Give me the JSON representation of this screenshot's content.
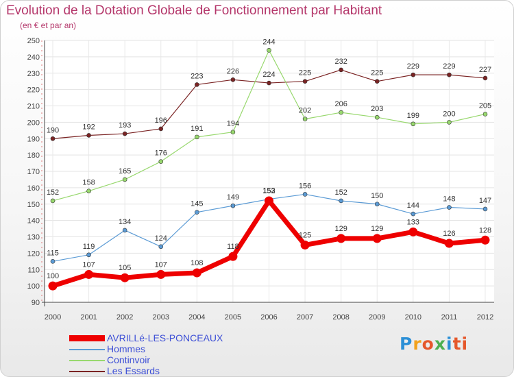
{
  "chart_data": {
    "type": "line",
    "title": "Evolution de la Dotation Globale de Fonctionnement par Habitant",
    "subtitle": "(en € et par an)",
    "categories": [
      "2000",
      "2001",
      "2002",
      "2003",
      "2004",
      "2005",
      "2006",
      "2007",
      "2008",
      "2009",
      "2010",
      "2011",
      "2012"
    ],
    "ylim": [
      90,
      250
    ],
    "yticks": [
      90,
      100,
      110,
      120,
      130,
      140,
      150,
      160,
      170,
      180,
      190,
      200,
      210,
      220,
      230,
      240,
      250
    ],
    "series": [
      {
        "name": "AVRILLé-LES-PONCEAUX",
        "color": "#ee0000",
        "values": [
          100,
          107,
          105,
          107,
          108,
          118,
          152,
          125,
          129,
          129,
          133,
          126,
          128
        ],
        "labels": [
          "100",
          "107",
          "105",
          "107",
          "108",
          "118",
          "152",
          "125",
          "129",
          "129",
          "133",
          "126",
          "128"
        ]
      },
      {
        "name": "Hommes",
        "color": "#5b9bd5",
        "values": [
          115,
          119,
          134,
          124,
          145,
          149,
          153,
          156,
          152,
          150,
          144,
          148,
          147
        ],
        "labels": [
          "115",
          "119",
          "134",
          "124",
          "145",
          "149",
          "153",
          "156",
          "152",
          "150",
          "144",
          "148",
          "147"
        ]
      },
      {
        "name": "Continvoir",
        "color": "#98d86e",
        "values": [
          152,
          158,
          165,
          176,
          191,
          194,
          244,
          202,
          206,
          203,
          199,
          200,
          205
        ],
        "labels": [
          "152",
          "158",
          "165",
          "176",
          "191",
          "194",
          "244",
          "202",
          "206",
          "203",
          "199",
          "200",
          "205"
        ]
      },
      {
        "name": "Les Essards",
        "color": "#7b2424",
        "values": [
          190,
          192,
          193,
          196,
          223,
          226,
          224,
          225,
          232,
          225,
          229,
          229,
          227
        ],
        "labels": [
          "190",
          "192",
          "193",
          "196",
          "223",
          "226",
          "224",
          "225",
          "232",
          "225",
          "229",
          "229",
          "227"
        ]
      }
    ],
    "legend": [
      "AVRILLé-LES-PONCEAUX",
      "Hommes",
      "Continvoir",
      "Les Essards"
    ]
  },
  "logo": {
    "text": [
      "P",
      "r",
      "o",
      "x",
      "i",
      "ti"
    ]
  }
}
